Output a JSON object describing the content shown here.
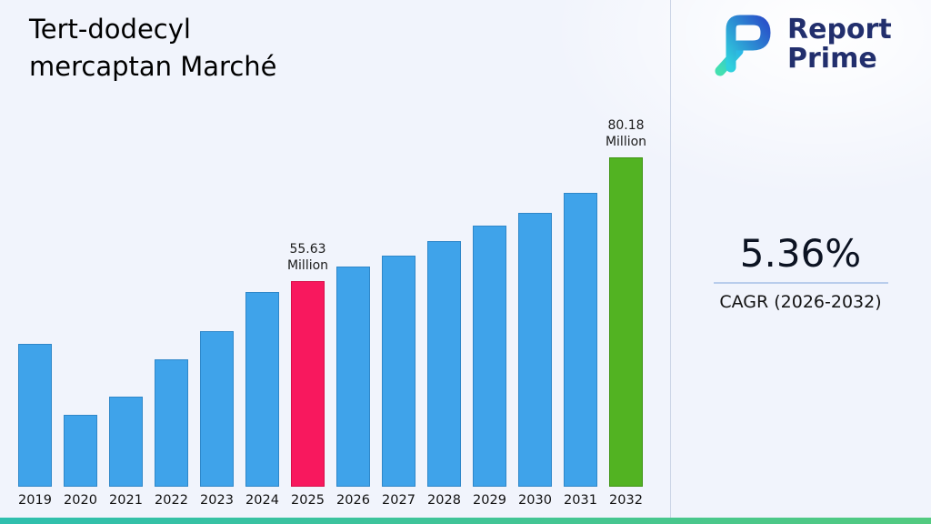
{
  "title": "Tert-dodecyl\nmercaptan Marché",
  "logo": {
    "line1": "Report",
    "line2": "Prime",
    "brand_navy": "#222f6d",
    "brand_teal": "#3ddbb6",
    "brand_blue": "#2a51c9"
  },
  "stats": {
    "value": "5.36%",
    "label": "CAGR (2026-2032)"
  },
  "chart_data": {
    "type": "bar",
    "title": "Tert-dodecyl mercaptan Marché",
    "categories": [
      "2019",
      "2020",
      "2021",
      "2022",
      "2023",
      "2024",
      "2025",
      "2026",
      "2027",
      "2028",
      "2029",
      "2030",
      "2031",
      "2032"
    ],
    "values": [
      43.3,
      29.3,
      32.9,
      40.2,
      45.8,
      53.6,
      55.63,
      58.6,
      60.7,
      63.6,
      66.7,
      69.3,
      73.1,
      80.18
    ],
    "unit": "Million",
    "xlabel": "",
    "ylabel": "",
    "ylim": [
      15,
      82
    ],
    "grid": false,
    "legend": false,
    "bar_color": "#3FA3EA",
    "bar_border_color": "#2F87C9",
    "highlights": [
      {
        "index": 6,
        "category": "2025",
        "color": "#F8185E",
        "border_color": "#D60E48",
        "label_value": "55.63",
        "label_unit": "Million"
      },
      {
        "index": 13,
        "category": "2032",
        "color": "#52B322",
        "border_color": "#3F9414",
        "label_value": "80.18",
        "label_unit": "Million"
      }
    ]
  }
}
